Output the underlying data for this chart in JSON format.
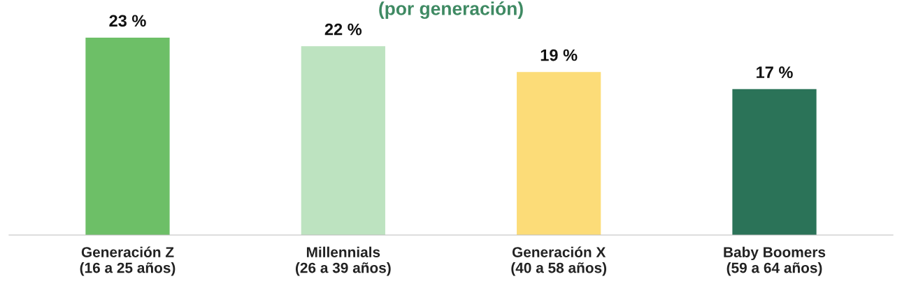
{
  "chart_data": {
    "type": "bar",
    "title": "(por generación)",
    "categories": [
      "Generación Z\n(16 a 25 años)",
      "Millennials\n(26 a 39 años)",
      "Generación X\n(40 a 58 años)",
      "Baby Boomers\n(59 a 64 años)"
    ],
    "values": [
      23,
      22,
      19,
      17
    ],
    "colors": [
      "#6dbf67",
      "#bde3c0",
      "#fcdc78",
      "#2b7358"
    ],
    "value_labels": [
      "23 %",
      "22 %",
      "19 %",
      "17 %"
    ],
    "tick_labels": "x",
    "grid": false,
    "legend": false
  }
}
